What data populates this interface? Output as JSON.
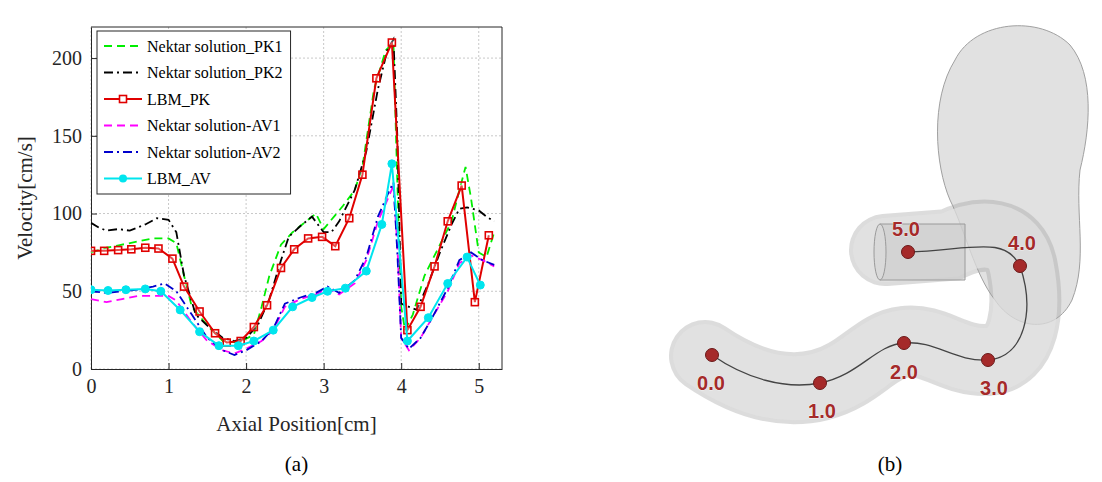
{
  "chart_data": {
    "type": "line",
    "x_label": "Axial Position[cm]",
    "y_label": "Velocity[cm/s]",
    "xlim": [
      0,
      5.3
    ],
    "xticks": [
      0,
      1,
      2,
      3,
      4,
      5
    ],
    "ylim": [
      0,
      220
    ],
    "yticks": [
      0,
      50,
      100,
      150,
      200
    ],
    "grid": true,
    "legend": "upper left",
    "series": [
      {
        "name": "Nektar solution_PK1",
        "color": "#00ee00",
        "line_style": "dashed",
        "marker": "none",
        "x": [
          0,
          0.2,
          0.4,
          0.6,
          0.8,
          1.0,
          1.1,
          1.2,
          1.3,
          1.5,
          1.7,
          1.9,
          2.1,
          2.2,
          2.3,
          2.45,
          2.6,
          2.8,
          2.9,
          3.0,
          3.1,
          3.25,
          3.4,
          3.5,
          3.65,
          3.8,
          3.9,
          3.95,
          4.0,
          4.05,
          4.15,
          4.3,
          4.5,
          4.65,
          4.75,
          4.83,
          4.9,
          5.0,
          5.1,
          5.2
        ],
        "values": [
          75,
          78,
          80,
          82,
          84,
          84,
          81,
          60,
          40,
          28,
          18,
          17,
          22,
          40,
          60,
          80,
          88,
          96,
          100,
          90,
          96,
          105,
          115,
          130,
          180,
          205,
          210,
          120,
          40,
          25,
          35,
          60,
          80,
          95,
          115,
          130,
          110,
          75,
          72,
          88
        ]
      },
      {
        "name": "Nektar solution_PK2",
        "color": "#000000",
        "line_style": "dashdot",
        "marker": "none",
        "x": [
          0,
          0.1,
          0.2,
          0.35,
          0.5,
          0.7,
          0.85,
          1.0,
          1.1,
          1.2,
          1.35,
          1.5,
          1.7,
          1.85,
          2.0,
          2.15,
          2.3,
          2.45,
          2.55,
          2.7,
          2.85,
          3.0,
          3.1,
          3.2,
          3.4,
          3.55,
          3.7,
          3.82,
          3.9,
          3.95,
          4.0,
          4.1,
          4.2,
          4.35,
          4.5,
          4.65,
          4.75,
          4.85,
          5.0,
          5.1,
          5.2
        ],
        "values": [
          94,
          91,
          89,
          90,
          89,
          93,
          97,
          96,
          88,
          60,
          35,
          28,
          20,
          18,
          20,
          28,
          45,
          70,
          85,
          92,
          98,
          88,
          88,
          95,
          115,
          140,
          180,
          205,
          212,
          150,
          42,
          40,
          38,
          55,
          75,
          93,
          103,
          104,
          102,
          98,
          95
        ]
      },
      {
        "name": "LBM_PK",
        "color": "#e00000",
        "line_style": "solid",
        "marker": "square",
        "x": [
          0,
          0.17,
          0.35,
          0.52,
          0.7,
          0.87,
          1.05,
          1.2,
          1.4,
          1.6,
          1.75,
          1.93,
          2.1,
          2.27,
          2.45,
          2.62,
          2.8,
          2.98,
          3.15,
          3.33,
          3.5,
          3.68,
          3.88,
          4.08,
          4.25,
          4.43,
          4.6,
          4.78,
          4.95,
          5.13
        ],
        "values": [
          76,
          76,
          76.5,
          77,
          78,
          77.5,
          71,
          53,
          37,
          23,
          17,
          18,
          27,
          41,
          65,
          77,
          84,
          85,
          79,
          97,
          125,
          187,
          210,
          25,
          40,
          66,
          95,
          118,
          43,
          86
        ]
      },
      {
        "name": "Nektar solution-AV1",
        "color": "#ff00ff",
        "line_style": "dashed",
        "marker": "none",
        "x": [
          0,
          0.2,
          0.4,
          0.6,
          0.8,
          1.0,
          1.1,
          1.3,
          1.5,
          1.7,
          1.85,
          2.0,
          2.2,
          2.35,
          2.5,
          2.7,
          2.9,
          3.05,
          3.2,
          3.4,
          3.55,
          3.7,
          3.85,
          3.9,
          3.95,
          4.0,
          4.1,
          4.25,
          4.4,
          4.6,
          4.75,
          4.9,
          5.05,
          5.2
        ],
        "values": [
          45,
          43,
          45,
          47,
          47,
          47,
          44,
          30,
          18,
          12,
          10,
          13,
          18,
          25,
          40,
          45,
          48,
          52,
          48,
          55,
          70,
          95,
          112,
          118,
          80,
          20,
          12,
          20,
          33,
          50,
          68,
          73,
          70,
          66
        ]
      },
      {
        "name": "Nektar solution-AV2",
        "color": "#0000cc",
        "line_style": "dashdot",
        "marker": "none",
        "x": [
          0,
          0.2,
          0.4,
          0.6,
          0.8,
          0.95,
          1.1,
          1.3,
          1.5,
          1.7,
          1.85,
          2.0,
          2.2,
          2.35,
          2.5,
          2.7,
          2.9,
          3.05,
          3.2,
          3.4,
          3.55,
          3.7,
          3.85,
          3.9,
          3.95,
          4.0,
          4.1,
          4.25,
          4.4,
          4.6,
          4.75,
          4.9,
          5.05,
          5.2
        ],
        "values": [
          50,
          49,
          50,
          51,
          53,
          55,
          50,
          35,
          20,
          12,
          9,
          12,
          18,
          26,
          42,
          46,
          49,
          53,
          49,
          57,
          72,
          98,
          115,
          120,
          75,
          20,
          13,
          20,
          33,
          52,
          70,
          75,
          70,
          67
        ]
      },
      {
        "name": "LBM_AV",
        "color": "#00e5ee",
        "line_style": "solid",
        "marker": "circle",
        "x": [
          0,
          0.22,
          0.45,
          0.7,
          0.9,
          1.15,
          1.4,
          1.65,
          1.9,
          2.1,
          2.35,
          2.6,
          2.85,
          3.05,
          3.28,
          3.55,
          3.75,
          3.88,
          4.08,
          4.35,
          4.6,
          4.85,
          5.02
        ],
        "values": [
          51,
          50.5,
          51,
          51.5,
          50,
          38,
          24,
          15,
          15,
          18,
          25,
          40,
          46,
          50,
          52,
          63,
          93,
          132,
          18,
          33,
          55,
          72,
          54
        ]
      }
    ]
  },
  "captions": [
    "(a)",
    "(b)"
  ],
  "diagram": {
    "markers": [
      {
        "label": "0.0"
      },
      {
        "label": "1.0"
      },
      {
        "label": "2.0"
      },
      {
        "label": "3.0"
      },
      {
        "label": "4.0"
      },
      {
        "label": "5.0"
      }
    ]
  }
}
